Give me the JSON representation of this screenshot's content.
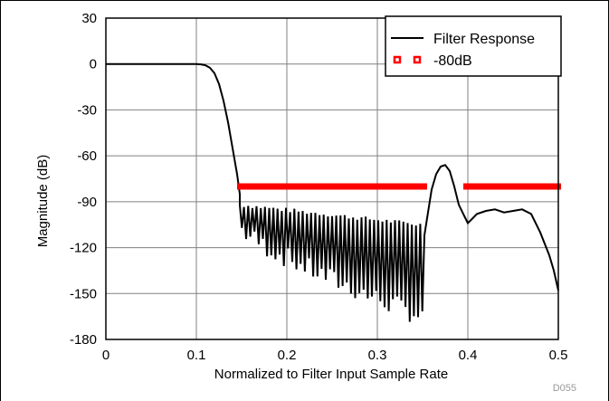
{
  "chart_data": {
    "type": "line",
    "xlabel": "Normalized to Filter Input Sample Rate",
    "ylabel": "Magnitude (dB)",
    "xlim": [
      0,
      0.5
    ],
    "ylim": [
      -180,
      30
    ],
    "x_ticks": [
      "0",
      "0.1",
      "0.2",
      "0.3",
      "0.4",
      "0.5"
    ],
    "y_ticks": [
      "30",
      "0",
      "-30",
      "-60",
      "-90",
      "-120",
      "-150",
      "-180"
    ],
    "grid": true,
    "legend_position": "top-right",
    "figure_id": "D055",
    "series": [
      {
        "name": "Filter Response",
        "style": "line",
        "color": "#000000",
        "passband": {
          "x": [
            0,
            0.1,
            0.105,
            0.11,
            0.115,
            0.12,
            0.125,
            0.13,
            0.135,
            0.14,
            0.145,
            0.148
          ],
          "y": [
            0,
            0,
            -0.2,
            -0.8,
            -2.5,
            -6,
            -13,
            -24,
            -38,
            -55,
            -72,
            -85
          ]
        },
        "stopband_floor": {
          "x_start": 0.148,
          "x_end": 0.352,
          "peak_y": [
            -92,
            -105
          ],
          "null_y": [
            -108,
            -165
          ]
        },
        "aliased_region": {
          "x": [
            0.352,
            0.36,
            0.365,
            0.37,
            0.375,
            0.38,
            0.385,
            0.39,
            0.395,
            0.4,
            0.405,
            0.41,
            0.42,
            0.43,
            0.44,
            0.45,
            0.46,
            0.47,
            0.48,
            0.49,
            0.495,
            0.5
          ],
          "y": [
            -112,
            -82,
            -72,
            -67,
            -66,
            -70,
            -80,
            -92,
            -98,
            -104,
            -101,
            -98,
            -96,
            -95,
            -97,
            -96,
            -95,
            -98,
            -110,
            -125,
            -135,
            -148
          ]
        }
      },
      {
        "name": "-80dB",
        "style": "markers",
        "color": "#ff0000",
        "segments": [
          {
            "x": [
              0.148,
              0.352
            ],
            "y": -80
          },
          {
            "x": [
              0.398,
              0.5
            ],
            "y": -80
          }
        ]
      }
    ]
  }
}
